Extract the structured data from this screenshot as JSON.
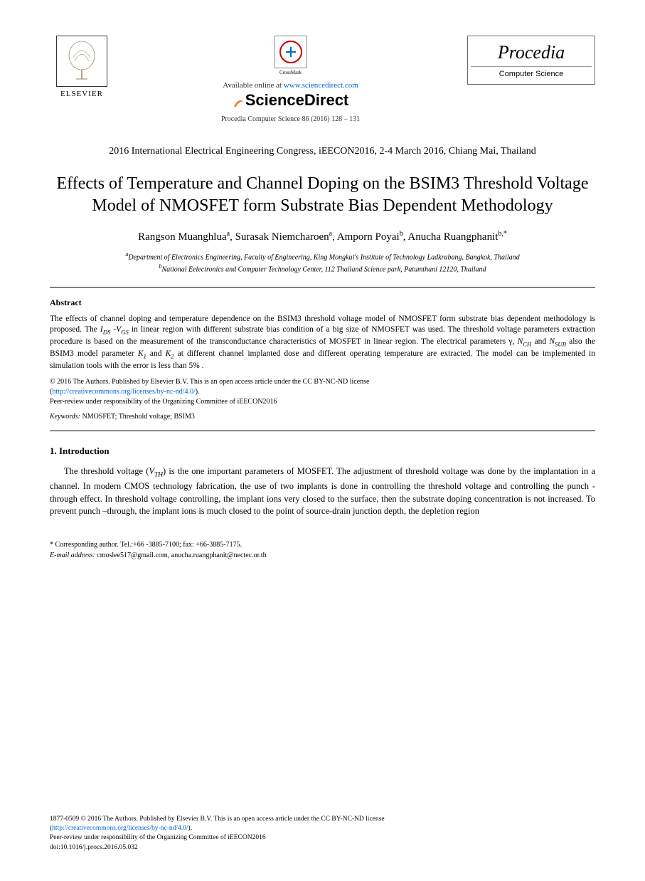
{
  "header": {
    "elsevier_label": "ELSEVIER",
    "crossmark_label": "CrossMark",
    "available_prefix": "Available online at ",
    "available_url": "www.sciencedirect.com",
    "sciencedirect": "ScienceDirect",
    "journal_ref": "Procedia Computer Science 86 (2016) 128 – 131",
    "procedia_title": "Procedia",
    "procedia_sub": "Computer Science"
  },
  "conference": "2016 International Electrical Engineering Congress, iEECON2016, 2-4 March 2016, Chiang Mai, Thailand",
  "title": "Effects of Temperature and Channel Doping on the BSIM3 Threshold Voltage Model of NMOSFET form Substrate Bias Dependent Methodology",
  "authors_html": "Rangson Muanghlua<sup>a</sup>, Surasak Niemcharoen<sup>a</sup>, Amporn Poyai<sup>b</sup>, Anucha Ruangphanit<sup>b,*</sup>",
  "affiliations": {
    "a": "Department of Electronics Engineering, Faculty of Engineering, King Mongkut's Institute of Technology Ladkrabang, Bangkok, Thailand",
    "b": "National Eelectronics and Computer Technology Center, 112 Thailand Science park, Patumthani 12120, Thailand"
  },
  "abstract": {
    "heading": "Abstract",
    "body_html": "The effects of channel doping and temperature dependence on the BSIM3 threshold voltage model of NMOSFET form substrate bias dependent methodology is proposed. The <i>I<sub>DS</sub></i> -<i>V<sub>GS</sub></i> in linear region with different substrate bias condition of a big size of NMOSFET was used. The threshold voltage parameters extraction procedure is based on the measurement of the transconductance characteristics of MOSFET in linear region. The electrical parameters γ, <i>N<sub>CH</sub></i> and <i>N<sub>SUB</sub></i> also the BSIM3 model parameter <i>K<sub>1</sub></i> and <i>K<sub>2</sub></i> at different channel implanted dose and different operating temperature are extracted. The model can be implemented in simulation tools with the error is less than 5% ."
  },
  "copyright": {
    "line1": "© 2016 The Authors. Published by Elsevier B.V. This is an open access article under the CC BY-NC-ND license",
    "license_url": "http://creativecommons.org/licenses/by-nc-nd/4.0/",
    "line2": "Peer-review under responsibility of the Organizing Committee of iEECON2016"
  },
  "keywords": {
    "label": "Keywords:",
    "text": " NMOSFET; Threshold voltage; BSIM3"
  },
  "section1": {
    "heading": "1. Introduction",
    "body_html": "The threshold voltage (<i>V<sub>TH</sub></i>) is the one important parameters of MOSFET. The adjustment of threshold voltage was done by the implantation in a channel. In modern CMOS technology fabrication, the use of two implants is done in controlling the threshold voltage and controlling the punch -through effect. In threshold voltage controlling, the implant ions very closed to the surface, then the substrate doping concentration is not increased. To prevent punch –through, the implant ions is much closed to the point of source-drain junction depth, the depletion region"
  },
  "corresponding": {
    "line1": "* Corresponding author. Tel.:+66 -3885-7100; fax: +66-3885-7175.",
    "email_label": "E-mail address:",
    "email_text": " cmoslee517@gmail.com, anucha.ruangphanit@nectec.or.th"
  },
  "footer": {
    "line1": "1877-0509 © 2016 The Authors. Published by Elsevier B.V. This is an open access article under the CC BY-NC-ND license",
    "license_url": "http://creativecommons.org/licenses/by-nc-nd/4.0/",
    "line2": "Peer-review under responsibility of the Organizing Committee of iEECON2016",
    "doi": "doi:10.1016/j.procs.2016.05.032"
  },
  "colors": {
    "link": "#0066cc",
    "text": "#000000",
    "background": "#ffffff"
  }
}
